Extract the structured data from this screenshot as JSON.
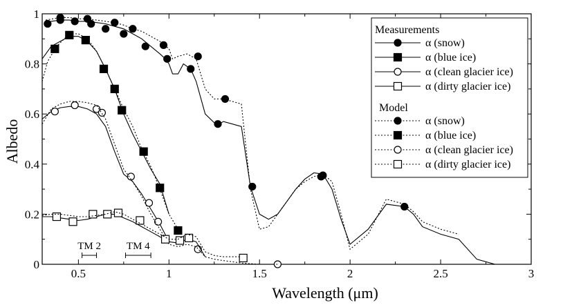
{
  "chart_data": {
    "type": "line",
    "xlabel": "Wavelength (μm)",
    "ylabel": "Albedo",
    "xlim": [
      0.3,
      3.0
    ],
    "ylim": [
      0,
      1.0
    ],
    "xticks": [
      0.5,
      1,
      1.5,
      2,
      2.5,
      3
    ],
    "xtick_labels": [
      "0.5",
      "1",
      "1.5",
      "2",
      "2.5",
      "3"
    ],
    "yticks": [
      0,
      0.2,
      0.4,
      0.6,
      0.8,
      1
    ],
    "ytick_labels": [
      "0",
      "0.2",
      "0.4",
      "0.6",
      "0.8",
      "1"
    ],
    "grid": false,
    "legend": {
      "placement": "top-right",
      "groups": [
        {
          "title": "Measurements",
          "entries": [
            {
              "label": "α (snow)",
              "marker": "filled-circle",
              "line": "solid"
            },
            {
              "label": "α (blue ice)",
              "marker": "filled-square",
              "line": "solid"
            },
            {
              "label": "α (clean glacier ice)",
              "marker": "open-circle",
              "line": "solid"
            },
            {
              "label": "α (dirty glacier ice)",
              "marker": "open-square",
              "line": "solid"
            }
          ]
        },
        {
          "title": "Model",
          "entries": [
            {
              "label": "α (snow)",
              "marker": "filled-circle",
              "line": "dotted"
            },
            {
              "label": "α (blue ice)",
              "marker": "filled-square",
              "line": "dotted"
            },
            {
              "label": "α (clean glacier ice)",
              "marker": "open-circle",
              "line": "dotted"
            },
            {
              "label": "α (dirty glacier ice)",
              "marker": "open-square",
              "line": "dotted"
            }
          ]
        }
      ]
    },
    "annotations": [
      {
        "text": "TM 2",
        "range": [
          0.52,
          0.6
        ]
      },
      {
        "text": "TM 4",
        "range": [
          0.76,
          0.9
        ]
      }
    ],
    "series": [
      {
        "group": "Measurements",
        "legend_label": "α (snow)",
        "style": "solid",
        "x": [
          0.32,
          0.35,
          0.4,
          0.45,
          0.5,
          0.55,
          0.6,
          0.65,
          0.7,
          0.75,
          0.8,
          0.85,
          0.9,
          0.95,
          0.98,
          1.0,
          1.02,
          1.05,
          1.08,
          1.12,
          1.15,
          1.2,
          1.25,
          1.28,
          1.3,
          1.35,
          1.4,
          1.45,
          1.5,
          1.55,
          1.6,
          1.65,
          1.7,
          1.75,
          1.8,
          1.85,
          1.9,
          1.95,
          2.0,
          2.1,
          2.2,
          2.3,
          2.35,
          2.4,
          2.5,
          2.6,
          2.7,
          2.8
        ],
        "y": [
          0.96,
          0.97,
          0.975,
          0.975,
          0.97,
          0.97,
          0.965,
          0.96,
          0.95,
          0.94,
          0.92,
          0.9,
          0.87,
          0.84,
          0.82,
          0.8,
          0.76,
          0.76,
          0.8,
          0.78,
          0.73,
          0.6,
          0.565,
          0.56,
          0.57,
          0.56,
          0.55,
          0.31,
          0.2,
          0.18,
          0.2,
          0.25,
          0.3,
          0.34,
          0.365,
          0.36,
          0.3,
          0.18,
          0.08,
          0.14,
          0.24,
          0.23,
          0.2,
          0.15,
          0.12,
          0.1,
          0.02,
          0.0
        ],
        "marker_x": [
          0.33,
          0.4,
          0.48,
          0.57,
          0.65,
          0.75,
          0.87,
          0.99,
          1.12,
          1.27,
          1.46,
          1.84,
          2.3
        ],
        "marker_y": [
          0.96,
          0.975,
          0.97,
          0.96,
          0.94,
          0.92,
          0.87,
          0.82,
          0.78,
          0.56,
          0.31,
          0.35,
          0.23
        ],
        "marker": "filled-circle"
      },
      {
        "group": "Model",
        "legend_label": "α (snow)",
        "style": "dotted",
        "x": [
          0.32,
          0.4,
          0.45,
          0.5,
          0.55,
          0.6,
          0.65,
          0.7,
          0.75,
          0.8,
          0.85,
          0.9,
          0.95,
          1.0,
          1.02,
          1.05,
          1.1,
          1.15,
          1.2,
          1.25,
          1.3,
          1.35,
          1.4,
          1.42,
          1.45,
          1.5,
          1.55,
          1.6,
          1.65,
          1.7,
          1.75,
          1.8,
          1.85,
          1.9,
          1.95,
          2.0,
          2.1,
          2.2,
          2.3,
          2.35,
          2.4,
          2.5,
          2.6
        ],
        "y": [
          0.975,
          0.985,
          0.985,
          0.98,
          0.98,
          0.975,
          0.97,
          0.965,
          0.955,
          0.94,
          0.93,
          0.91,
          0.89,
          0.86,
          0.82,
          0.83,
          0.84,
          0.82,
          0.7,
          0.66,
          0.66,
          0.65,
          0.64,
          0.5,
          0.3,
          0.14,
          0.15,
          0.2,
          0.25,
          0.3,
          0.33,
          0.35,
          0.36,
          0.33,
          0.2,
          0.06,
          0.12,
          0.26,
          0.24,
          0.21,
          0.17,
          0.14,
          0.12
        ],
        "marker_x": [
          0.4,
          0.55,
          0.7,
          0.8,
          0.97,
          1.16,
          1.31,
          1.85
        ],
        "marker_y": [
          0.985,
          0.98,
          0.965,
          0.94,
          0.875,
          0.83,
          0.66,
          0.355
        ],
        "marker": "filled-circle"
      },
      {
        "group": "Measurements",
        "legend_label": "α (blue ice)",
        "style": "solid",
        "x": [
          0.3,
          0.35,
          0.4,
          0.45,
          0.5,
          0.55,
          0.6,
          0.65,
          0.7,
          0.75,
          0.8,
          0.85,
          0.9,
          0.95,
          1.0
        ],
        "y": [
          0.82,
          0.87,
          0.89,
          0.91,
          0.91,
          0.89,
          0.85,
          0.78,
          0.7,
          0.6,
          0.52,
          0.45,
          0.38,
          0.32,
          0.2
        ],
        "marker_x": [
          0.37,
          0.45,
          0.54,
          0.64,
          0.7,
          0.74,
          0.86,
          0.95
        ],
        "marker_y": [
          0.86,
          0.915,
          0.895,
          0.78,
          0.7,
          0.615,
          0.45,
          0.305
        ],
        "marker": "filled-square"
      },
      {
        "group": "Model",
        "legend_label": "α (blue ice)",
        "style": "dotted",
        "x": [
          0.3,
          0.33,
          0.38,
          0.45,
          0.5,
          0.55,
          0.6,
          0.65,
          0.7,
          0.75,
          0.8,
          0.85,
          0.9,
          0.95,
          1.0,
          1.05
        ],
        "y": [
          0.73,
          0.81,
          0.87,
          0.92,
          0.92,
          0.9,
          0.85,
          0.78,
          0.7,
          0.62,
          0.55,
          0.46,
          0.39,
          0.3,
          0.2,
          0.14
        ],
        "marker_x": [
          1.05
        ],
        "marker_y": [
          0.135
        ],
        "marker": "filled-square"
      },
      {
        "group": "Measurements",
        "legend_label": "α (clean glacier ice)",
        "style": "solid",
        "x": [
          0.3,
          0.35,
          0.4,
          0.45,
          0.5,
          0.55,
          0.6,
          0.65,
          0.7,
          0.75,
          0.8,
          0.85,
          0.9,
          0.95,
          1.0
        ],
        "y": [
          0.58,
          0.61,
          0.625,
          0.63,
          0.63,
          0.62,
          0.6,
          0.55,
          0.45,
          0.36,
          0.33,
          0.28,
          0.22,
          0.16,
          0.09
        ],
        "marker_x": [
          0.37,
          0.48,
          0.6,
          0.63,
          0.79,
          0.89,
          0.94,
          1.16,
          1.6
        ],
        "marker_y": [
          0.61,
          0.635,
          0.62,
          0.605,
          0.35,
          0.245,
          0.17,
          0.06,
          0.0
        ],
        "marker": "open-circle"
      },
      {
        "group": "Model",
        "legend_label": "α (clean glacier ice)",
        "style": "dotted",
        "x": [
          0.3,
          0.35,
          0.4,
          0.45,
          0.5,
          0.55,
          0.6,
          0.65,
          0.7,
          0.75,
          0.8,
          0.85,
          0.9,
          0.95,
          1.0,
          1.05,
          1.1,
          1.15,
          1.2,
          1.25,
          1.3,
          1.35,
          1.4,
          1.5,
          1.6
        ],
        "y": [
          0.56,
          0.62,
          0.64,
          0.65,
          0.65,
          0.645,
          0.635,
          0.58,
          0.48,
          0.38,
          0.33,
          0.27,
          0.2,
          0.14,
          0.08,
          0.07,
          0.08,
          0.07,
          0.03,
          0.02,
          0.015,
          0.01,
          0.005,
          0.0,
          0.0
        ],
        "marker_x": [],
        "marker_y": [],
        "marker": "open-circle"
      },
      {
        "group": "Measurements",
        "legend_label": "α (dirty glacier ice)",
        "style": "solid",
        "x": [
          0.3,
          0.35,
          0.4,
          0.45,
          0.5,
          0.55,
          0.6,
          0.65,
          0.7,
          0.75,
          0.8,
          0.85,
          0.9,
          0.95,
          1.0,
          1.05,
          1.1,
          1.15,
          1.2
        ],
        "y": [
          0.19,
          0.19,
          0.185,
          0.18,
          0.175,
          0.18,
          0.19,
          0.2,
          0.2,
          0.185,
          0.17,
          0.15,
          0.13,
          0.11,
          0.09,
          0.085,
          0.1,
          0.09,
          0.03
        ],
        "marker_x": [
          0.38,
          0.47,
          0.58,
          0.66,
          0.72,
          0.84,
          0.98,
          1.06,
          1.11,
          1.41
        ],
        "marker_y": [
          0.19,
          0.17,
          0.2,
          0.2,
          0.205,
          0.175,
          0.1,
          0.095,
          0.105,
          0.025
        ],
        "marker": "open-square"
      },
      {
        "group": "Model",
        "legend_label": "α (dirty glacier ice)",
        "style": "dotted",
        "x": [
          0.3,
          0.35,
          0.4,
          0.45,
          0.5,
          0.55,
          0.6,
          0.65,
          0.7,
          0.75,
          0.8,
          0.85,
          0.9,
          0.95,
          1.0,
          1.05,
          1.1,
          1.15,
          1.2,
          1.25,
          1.3,
          1.35,
          1.4
        ],
        "y": [
          0.195,
          0.2,
          0.2,
          0.195,
          0.19,
          0.19,
          0.195,
          0.2,
          0.21,
          0.2,
          0.18,
          0.16,
          0.14,
          0.12,
          0.1,
          0.1,
          0.12,
          0.11,
          0.05,
          0.035,
          0.03,
          0.03,
          0.03
        ],
        "marker_x": [],
        "marker_y": [],
        "marker": "open-square"
      }
    ]
  }
}
